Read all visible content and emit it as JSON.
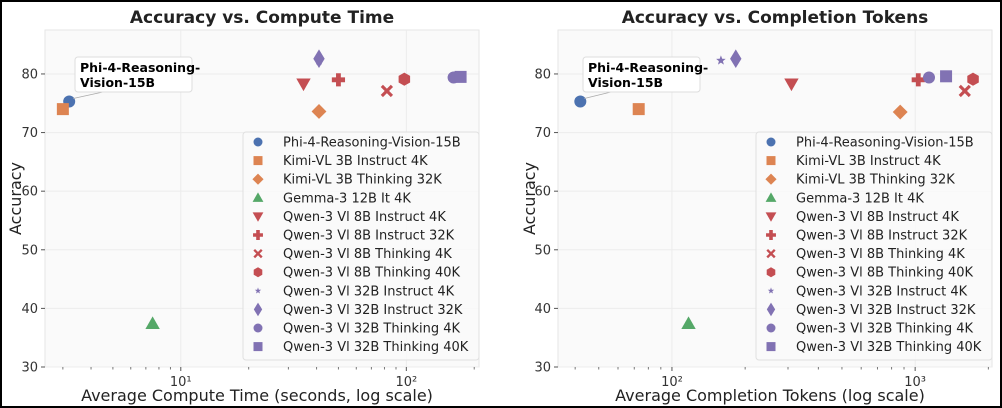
{
  "chart_data": [
    {
      "type": "scatter",
      "title": "Accuracy vs. Compute Time",
      "xlabel": "Average Compute Time (seconds, log scale)",
      "ylabel": "Accuracy",
      "xscale": "log",
      "xlim": [
        2.5,
        210
      ],
      "ylim": [
        30,
        87.5
      ],
      "xticks": [
        {
          "value": 10,
          "label": "10¹"
        },
        {
          "value": 100,
          "label": "10²"
        }
      ],
      "yticks": [
        30,
        40,
        50,
        60,
        70,
        80
      ],
      "grid": true,
      "legend": "lower-right",
      "annotation": {
        "lines": [
          "Phi-4-Reasoning-",
          "Vision-15B"
        ],
        "target": "Phi-4-Reasoning-Vision-15B"
      },
      "series": [
        {
          "name": "Phi-4-Reasoning-Vision-15B",
          "marker": "circle",
          "color": "#4c72b0",
          "x": 3.2,
          "y": 75.3
        },
        {
          "name": "Kimi-VL 3B Instruct 4K",
          "marker": "square",
          "color": "#dd8452",
          "x": 3.0,
          "y": 74.0
        },
        {
          "name": "Kimi-VL 3B Thinking 32K",
          "marker": "diamond",
          "color": "#dd8452",
          "x": 41,
          "y": 73.6
        },
        {
          "name": "Gemma-3 12B It 4K",
          "marker": "triangle-up",
          "color": "#55a868",
          "x": 7.5,
          "y": 37.4
        },
        {
          "name": "Qwen-3 Vl 8B Instruct 4K",
          "marker": "triangle-down",
          "color": "#c44e52",
          "x": 35,
          "y": 78.3
        },
        {
          "name": "Qwen-3 Vl 8B Instruct 32K",
          "marker": "plus",
          "color": "#c44e52",
          "x": 50,
          "y": 79.0
        },
        {
          "name": "Qwen-3 Vl 8B Thinking 4K",
          "marker": "x",
          "color": "#c44e52",
          "x": 82,
          "y": 77.1
        },
        {
          "name": "Qwen-3 Vl 8B Thinking 40K",
          "marker": "hexagon",
          "color": "#c44e52",
          "x": 98,
          "y": 79.1
        },
        {
          "name": "Qwen-3 Vl 32B Instruct 4K",
          "marker": "star",
          "color": "#8172b3",
          "x": 41,
          "y": 82.3
        },
        {
          "name": "Qwen-3 Vl 32B Instruct 32K",
          "marker": "thin-diamond",
          "color": "#8172b3",
          "x": 41,
          "y": 82.6
        },
        {
          "name": "Qwen-3 Vl 32B Thinking 4K",
          "marker": "circle",
          "color": "#8172b3",
          "x": 162,
          "y": 79.4
        },
        {
          "name": "Qwen-3 Vl 32B Thinking 40K",
          "marker": "square",
          "color": "#8172b3",
          "x": 174,
          "y": 79.5
        }
      ]
    },
    {
      "type": "scatter",
      "title": "Accuracy vs. Completion Tokens",
      "xlabel": "Average Completion Tokens (log scale)",
      "ylabel": "Accuracy",
      "xscale": "log",
      "xlim": [
        34,
        2070
      ],
      "ylim": [
        30,
        87.5
      ],
      "xticks": [
        {
          "value": 100,
          "label": "10²"
        },
        {
          "value": 1000,
          "label": "10³"
        }
      ],
      "yticks": [
        30,
        40,
        50,
        60,
        70,
        80
      ],
      "grid": true,
      "legend": "lower-right",
      "annotation": {
        "lines": [
          "Phi-4-Reasoning-",
          "Vision-15B"
        ],
        "target": "Phi-4-Reasoning-Vision-15B"
      },
      "series": [
        {
          "name": "Phi-4-Reasoning-Vision-15B",
          "marker": "circle",
          "color": "#4c72b0",
          "x": 42,
          "y": 75.3
        },
        {
          "name": "Kimi-VL 3B Instruct 4K",
          "marker": "square",
          "color": "#dd8452",
          "x": 73,
          "y": 74.0
        },
        {
          "name": "Kimi-VL 3B Thinking 32K",
          "marker": "diamond",
          "color": "#dd8452",
          "x": 868,
          "y": 73.5
        },
        {
          "name": "Gemma-3 12B It 4K",
          "marker": "triangle-up",
          "color": "#55a868",
          "x": 117,
          "y": 37.4
        },
        {
          "name": "Qwen-3 Vl 8B Instruct 4K",
          "marker": "triangle-down",
          "color": "#c44e52",
          "x": 310,
          "y": 78.3
        },
        {
          "name": "Qwen-3 Vl 8B Instruct 32K",
          "marker": "plus",
          "color": "#c44e52",
          "x": 1030,
          "y": 79.0
        },
        {
          "name": "Qwen-3 Vl 8B Thinking 4K",
          "marker": "x",
          "color": "#c44e52",
          "x": 1600,
          "y": 77.1
        },
        {
          "name": "Qwen-3 Vl 8B Thinking 40K",
          "marker": "hexagon",
          "color": "#c44e52",
          "x": 1730,
          "y": 79.1
        },
        {
          "name": "Qwen-3 Vl 32B Instruct 4K",
          "marker": "star",
          "color": "#8172b3",
          "x": 159,
          "y": 82.3
        },
        {
          "name": "Qwen-3 Vl 32B Instruct 32K",
          "marker": "thin-diamond",
          "color": "#8172b3",
          "x": 183,
          "y": 82.6
        },
        {
          "name": "Qwen-3 Vl 32B Thinking 4K",
          "marker": "circle",
          "color": "#8172b3",
          "x": 1140,
          "y": 79.4
        },
        {
          "name": "Qwen-3 Vl 32B Thinking 40K",
          "marker": "square",
          "color": "#8172b3",
          "x": 1340,
          "y": 79.6
        }
      ]
    }
  ]
}
